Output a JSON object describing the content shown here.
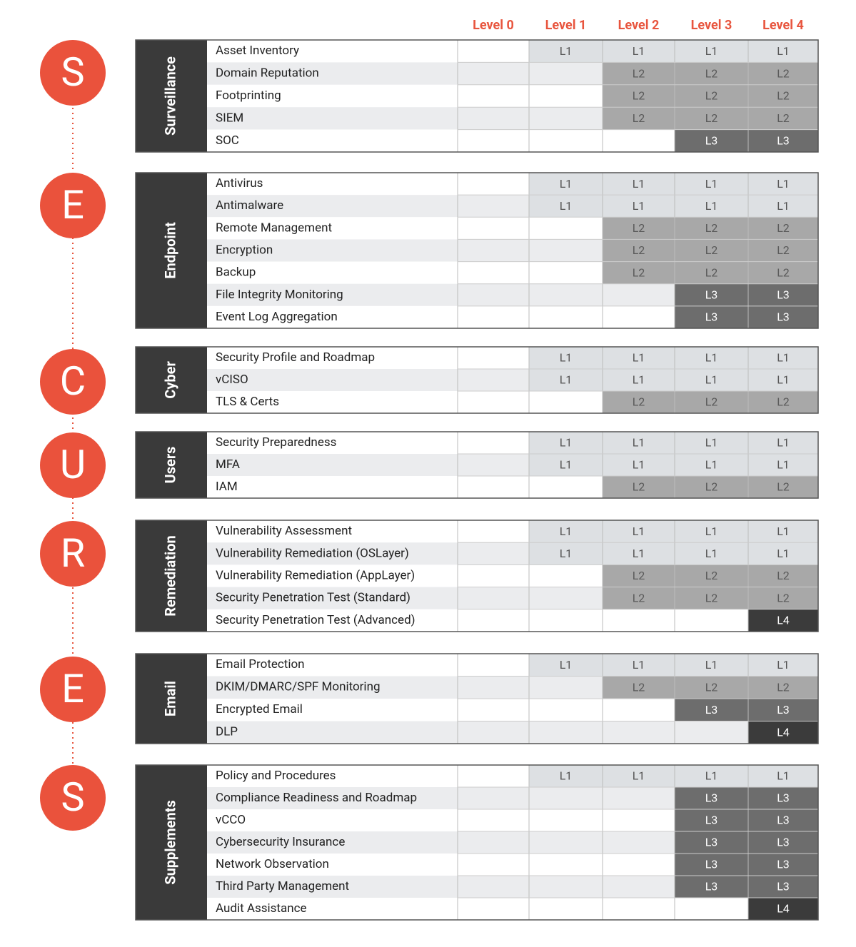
{
  "levels": [
    "Level 0",
    "Level 1",
    "Level 2",
    "Level 3",
    "Level 4"
  ],
  "letters": [
    "S",
    "E",
    "C",
    "U",
    "R",
    "E",
    "S"
  ],
  "sections": [
    {
      "name": "Surveillance",
      "rows": [
        {
          "label": "Asset Inventory",
          "cells": [
            null,
            "L1",
            "L1",
            "L1",
            "L1"
          ]
        },
        {
          "label": "Domain Reputation",
          "cells": [
            null,
            null,
            "L2",
            "L2",
            "L2"
          ]
        },
        {
          "label": "Footprinting",
          "cells": [
            null,
            null,
            "L2",
            "L2",
            "L2"
          ]
        },
        {
          "label": "SIEM",
          "cells": [
            null,
            null,
            "L2",
            "L2",
            "L2"
          ]
        },
        {
          "label": "SOC",
          "cells": [
            null,
            null,
            null,
            "L3",
            "L3"
          ]
        }
      ]
    },
    {
      "name": "Endpoint",
      "rows": [
        {
          "label": "Antivirus",
          "cells": [
            null,
            "L1",
            "L1",
            "L1",
            "L1"
          ]
        },
        {
          "label": "Antimalware",
          "cells": [
            null,
            "L1",
            "L1",
            "L1",
            "L1"
          ]
        },
        {
          "label": "Remote Management",
          "cells": [
            null,
            null,
            "L2",
            "L2",
            "L2"
          ]
        },
        {
          "label": "Encryption",
          "cells": [
            null,
            null,
            "L2",
            "L2",
            "L2"
          ]
        },
        {
          "label": "Backup",
          "cells": [
            null,
            null,
            "L2",
            "L2",
            "L2"
          ]
        },
        {
          "label": "File Integrity Monitoring",
          "cells": [
            null,
            null,
            null,
            "L3",
            "L3"
          ]
        },
        {
          "label": "Event Log Aggregation",
          "cells": [
            null,
            null,
            null,
            "L3",
            "L3"
          ]
        }
      ]
    },
    {
      "name": "Cyber",
      "rows": [
        {
          "label": "Security Profile and Roadmap",
          "cells": [
            null,
            "L1",
            "L1",
            "L1",
            "L1"
          ]
        },
        {
          "label": "vCISO",
          "cells": [
            null,
            "L1",
            "L1",
            "L1",
            "L1"
          ]
        },
        {
          "label": "TLS & Certs",
          "cells": [
            null,
            null,
            "L2",
            "L2",
            "L2"
          ]
        }
      ]
    },
    {
      "name": "Users",
      "rows": [
        {
          "label": "Security Preparedness",
          "cells": [
            null,
            "L1",
            "L1",
            "L1",
            "L1"
          ]
        },
        {
          "label": "MFA",
          "cells": [
            null,
            "L1",
            "L1",
            "L1",
            "L1"
          ]
        },
        {
          "label": "IAM",
          "cells": [
            null,
            null,
            "L2",
            "L2",
            "L2"
          ]
        }
      ]
    },
    {
      "name": "Remediation",
      "rows": [
        {
          "label": "Vulnerability Assessment",
          "cells": [
            null,
            "L1",
            "L1",
            "L1",
            "L1"
          ]
        },
        {
          "label": "Vulnerability Remediation (OSLayer)",
          "cells": [
            null,
            "L1",
            "L1",
            "L1",
            "L1"
          ]
        },
        {
          "label": "Vulnerability Remediation (AppLayer)",
          "cells": [
            null,
            null,
            "L2",
            "L2",
            "L2"
          ]
        },
        {
          "label": "Security Penetration Test (Standard)",
          "cells": [
            null,
            null,
            "L2",
            "L2",
            "L2"
          ]
        },
        {
          "label": "Security Penetration Test (Advanced)",
          "cells": [
            null,
            null,
            null,
            null,
            "L4"
          ]
        }
      ]
    },
    {
      "name": "Email",
      "rows": [
        {
          "label": "Email Protection",
          "cells": [
            null,
            "L1",
            "L1",
            "L1",
            "L1"
          ]
        },
        {
          "label": "DKIM/DMARC/SPF Monitoring",
          "cells": [
            null,
            null,
            "L2",
            "L2",
            "L2"
          ]
        },
        {
          "label": "Encrypted Email",
          "cells": [
            null,
            null,
            null,
            "L3",
            "L3"
          ]
        },
        {
          "label": "DLP",
          "cells": [
            null,
            null,
            null,
            null,
            "L4"
          ]
        }
      ]
    },
    {
      "name": "Supplements",
      "rows": [
        {
          "label": "Policy and Procedures",
          "cells": [
            null,
            "L1",
            "L1",
            "L1",
            "L1"
          ]
        },
        {
          "label": "Compliance Readiness and Roadmap",
          "cells": [
            null,
            null,
            null,
            "L3",
            "L3"
          ]
        },
        {
          "label": "vCCO",
          "cells": [
            null,
            null,
            null,
            "L3",
            "L3"
          ]
        },
        {
          "label": "Cybersecurity Insurance",
          "cells": [
            null,
            null,
            null,
            "L3",
            "L3"
          ]
        },
        {
          "label": "Network Observation",
          "cells": [
            null,
            null,
            null,
            "L3",
            "L3"
          ]
        },
        {
          "label": "Third Party Management",
          "cells": [
            null,
            null,
            null,
            "L3",
            "L3"
          ]
        },
        {
          "label": "Audit Assistance",
          "cells": [
            null,
            null,
            null,
            null,
            "L4"
          ]
        }
      ]
    }
  ]
}
